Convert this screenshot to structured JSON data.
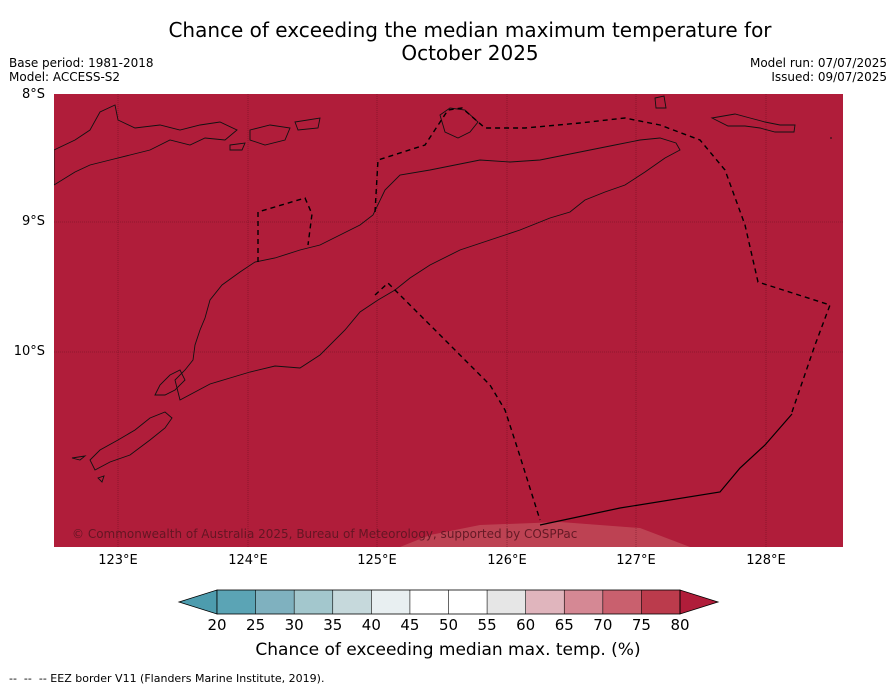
{
  "title_line1": "Chance of exceeding the median maximum temperature for",
  "title_line2": "October 2025",
  "base_period": "Base period: 1981-2018",
  "model": "Model: ACCESS-S2",
  "model_run": "Model run: 07/07/2025",
  "issued": "Issued: 09/07/2025",
  "lat_labels": [
    "8°S",
    "9°S",
    "10°S"
  ],
  "lon_labels": [
    "123°E",
    "124°E",
    "125°E",
    "126°E",
    "127°E",
    "128°E"
  ],
  "copyright": "© Commonwealth of Australia 2025, Bureau of Meteorology, supported by COSPPac",
  "colorbar": {
    "ticks": [
      "20",
      "25",
      "30",
      "35",
      "40",
      "45",
      "50",
      "55",
      "60",
      "65",
      "70",
      "75",
      "80"
    ],
    "label": "Chance of exceeding median max. temp. (%)",
    "colors": [
      "#5ba4b5",
      "#7fb1bf",
      "#a3c7cd",
      "#c6d9dc",
      "#e8eff1",
      "#ffffff",
      "#ffffff",
      "#e6e6e6",
      "#e0b5bd",
      "#d58894",
      "#c9606e",
      "#bb3b4c"
    ],
    "under_color": "#4d9cae",
    "over_color": "#b01d3a"
  },
  "map": {
    "fill_color": "#b01d3a",
    "lighter_zone_color": "#bf4756"
  },
  "footer": "--  --  -- EEZ border V11 (Flanders Marine Institute, 2019)."
}
